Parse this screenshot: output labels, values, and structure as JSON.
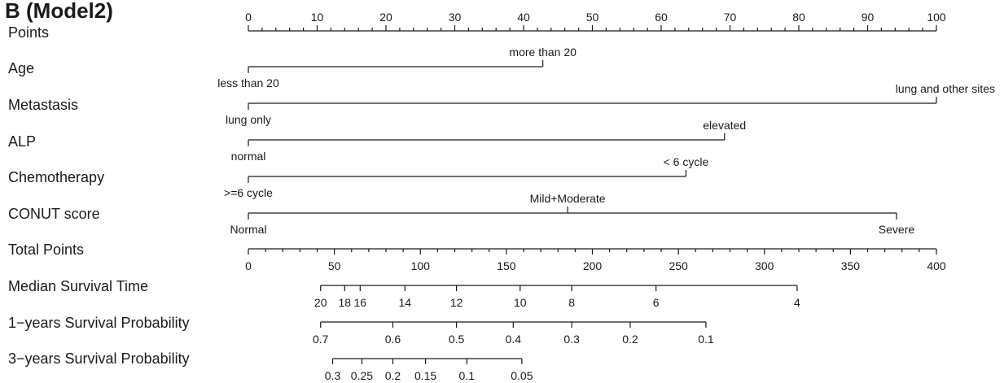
{
  "chart_data": {
    "type": "nomogram",
    "title": "B (Model2)",
    "points_scale": {
      "label": "Points",
      "min": 0,
      "max": 100,
      "major_ticks": [
        0,
        10,
        20,
        30,
        40,
        50,
        60,
        70,
        80,
        90,
        100
      ],
      "minor_step": 2
    },
    "variables": [
      {
        "label": "Age",
        "levels": [
          {
            "name": "less than 20",
            "points": 0,
            "label_side": "below"
          },
          {
            "name": "more than 20",
            "points": 42.8,
            "label_side": "above"
          }
        ]
      },
      {
        "label": "Metastasis",
        "levels": [
          {
            "name": "lung only",
            "points": 0,
            "label_side": "below"
          },
          {
            "name": "lung and other sites",
            "points": 100,
            "label_side": "above"
          }
        ]
      },
      {
        "label": "ALP",
        "levels": [
          {
            "name": "normal",
            "points": 0,
            "label_side": "below"
          },
          {
            "name": "elevated",
            "points": 69.2,
            "label_side": "above"
          }
        ]
      },
      {
        "label": "Chemotherapy",
        "levels": [
          {
            "name": ">=6 cycle",
            "points": 0,
            "label_side": "below"
          },
          {
            "name": "< 6 cycle",
            "points": 63.6,
            "label_side": "above"
          }
        ]
      },
      {
        "label": "CONUT score",
        "levels": [
          {
            "name": "Normal",
            "points": 0,
            "label_side": "below"
          },
          {
            "name": "Mild+Moderate",
            "points": 46.4,
            "label_side": "above"
          },
          {
            "name": "Severe",
            "points": 94.2,
            "label_side": "below"
          }
        ]
      }
    ],
    "total_points_scale": {
      "label": "Total Points",
      "min": 0,
      "max": 400,
      "major_ticks": [
        0,
        50,
        100,
        150,
        200,
        250,
        300,
        350,
        400
      ],
      "minor_step": 10
    },
    "outcome_scales": [
      {
        "label": "Median Survival Time",
        "range_total_points": [
          42,
          319
        ],
        "ticks": [
          {
            "label": "20",
            "total_points": 42
          },
          {
            "label": "18",
            "total_points": 56
          },
          {
            "label": "16",
            "total_points": 65
          },
          {
            "label": "14",
            "total_points": 91
          },
          {
            "label": "12",
            "total_points": 121
          },
          {
            "label": "10",
            "total_points": 158
          },
          {
            "label": "8",
            "total_points": 188
          },
          {
            "label": "6",
            "total_points": 237
          },
          {
            "label": "4",
            "total_points": 319
          }
        ]
      },
      {
        "label": "1−years Survival Probability",
        "range_total_points": [
          42,
          266
        ],
        "ticks": [
          {
            "label": "0.7",
            "total_points": 42
          },
          {
            "label": "0.6",
            "total_points": 84
          },
          {
            "label": "0.5",
            "total_points": 121
          },
          {
            "label": "0.4",
            "total_points": 154
          },
          {
            "label": "0.3",
            "total_points": 188
          },
          {
            "label": "0.2",
            "total_points": 222
          },
          {
            "label": "0.1",
            "total_points": 266
          }
        ]
      },
      {
        "label": "3−years Survival Probability",
        "range_total_points": [
          49,
          159
        ],
        "ticks": [
          {
            "label": "0.3",
            "total_points": 49
          },
          {
            "label": "0.25",
            "total_points": 66
          },
          {
            "label": "0.2",
            "total_points": 84
          },
          {
            "label": "0.15",
            "total_points": 103
          },
          {
            "label": "0.1",
            "total_points": 127
          },
          {
            "label": "0.05",
            "total_points": 159
          }
        ]
      }
    ]
  }
}
